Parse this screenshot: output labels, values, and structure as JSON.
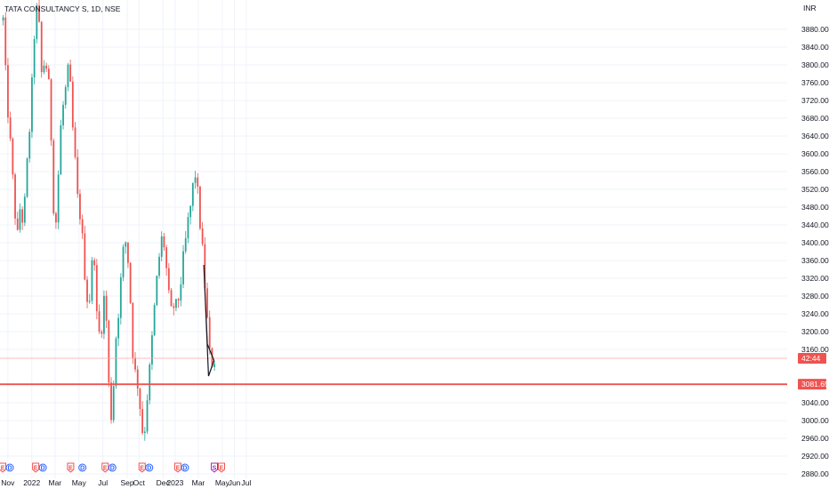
{
  "chart_data": {
    "type": "candlestick",
    "title": "TATA CONSULTANCY S, 1D, NSE",
    "currency": "INR",
    "ylim": [
      2840,
      3920
    ],
    "y_ticks": [
      "3880.00",
      "3840.00",
      "3800.00",
      "3760.00",
      "3720.00",
      "3680.00",
      "3640.00",
      "3600.00",
      "3560.00",
      "3520.00",
      "3480.00",
      "3440.00",
      "3400.00",
      "3360.00",
      "3320.00",
      "3280.00",
      "3240.00",
      "3200.00",
      "3160.00",
      "3040.00",
      "3000.00",
      "2960.00",
      "2920.00",
      "2880.00",
      "2840.00"
    ],
    "x_ticks": [
      "Nov",
      "2022",
      "Mar",
      "May",
      "Jul",
      "Sep",
      "Oct",
      "Dec",
      "2023",
      "Mar",
      "May",
      "Jun",
      "Jul"
    ],
    "current_price": {
      "label": "42:44",
      "value": 3140
    },
    "support_level": {
      "label": "3081.65",
      "value": 3081.65
    },
    "price_path": [
      {
        "date": "2021-10-20",
        "close": 3900
      },
      {
        "date": "2021-10-27",
        "close": 3760
      },
      {
        "date": "2021-11-05",
        "close": 3650
      },
      {
        "date": "2021-11-12",
        "close": 3560
      },
      {
        "date": "2021-11-18",
        "close": 3480
      },
      {
        "date": "2021-11-26",
        "close": 3410
      },
      {
        "date": "2021-12-03",
        "close": 3490
      },
      {
        "date": "2021-12-10",
        "close": 3440
      },
      {
        "date": "2021-12-16",
        "close": 3510
      },
      {
        "date": "2021-12-23",
        "close": 3620
      },
      {
        "date": "2021-12-30",
        "close": 3700
      },
      {
        "date": "2022-01-06",
        "close": 3850
      },
      {
        "date": "2022-01-12",
        "close": 3930
      },
      {
        "date": "2022-01-20",
        "close": 3880
      },
      {
        "date": "2022-01-27",
        "close": 3760
      },
      {
        "date": "2022-02-03",
        "close": 3820
      },
      {
        "date": "2022-02-10",
        "close": 3780
      },
      {
        "date": "2022-02-17",
        "close": 3710
      },
      {
        "date": "2022-02-24",
        "close": 3500
      },
      {
        "date": "2022-03-03",
        "close": 3440
      },
      {
        "date": "2022-03-10",
        "close": 3560
      },
      {
        "date": "2022-03-17",
        "close": 3680
      },
      {
        "date": "2022-03-24",
        "close": 3720
      },
      {
        "date": "2022-03-31",
        "close": 3760
      },
      {
        "date": "2022-04-06",
        "close": 3800
      },
      {
        "date": "2022-04-13",
        "close": 3680
      },
      {
        "date": "2022-04-20",
        "close": 3600
      },
      {
        "date": "2022-04-27",
        "close": 3500
      },
      {
        "date": "2022-05-05",
        "close": 3460
      },
      {
        "date": "2022-05-12",
        "close": 3380
      },
      {
        "date": "2022-05-19",
        "close": 3300
      },
      {
        "date": "2022-05-26",
        "close": 3250
      },
      {
        "date": "2022-06-02",
        "close": 3340
      },
      {
        "date": "2022-06-09",
        "close": 3380
      },
      {
        "date": "2022-06-16",
        "close": 3220
      },
      {
        "date": "2022-06-23",
        "close": 3190
      },
      {
        "date": "2022-06-30",
        "close": 3230
      },
      {
        "date": "2022-07-07",
        "close": 3310
      },
      {
        "date": "2022-07-14",
        "close": 3110
      },
      {
        "date": "2022-07-21",
        "close": 3000
      },
      {
        "date": "2022-07-28",
        "close": 3080
      },
      {
        "date": "2022-08-04",
        "close": 3200
      },
      {
        "date": "2022-08-11",
        "close": 3260
      },
      {
        "date": "2022-08-18",
        "close": 3340
      },
      {
        "date": "2022-08-25",
        "close": 3410
      },
      {
        "date": "2022-09-01",
        "close": 3390
      },
      {
        "date": "2022-09-08",
        "close": 3290
      },
      {
        "date": "2022-09-15",
        "close": 3160
      },
      {
        "date": "2022-09-22",
        "close": 3100
      },
      {
        "date": "2022-09-29",
        "close": 3080
      },
      {
        "date": "2022-10-06",
        "close": 3010
      },
      {
        "date": "2022-10-13",
        "close": 2950
      },
      {
        "date": "2022-10-20",
        "close": 3040
      },
      {
        "date": "2022-10-27",
        "close": 3100
      },
      {
        "date": "2022-11-03",
        "close": 3180
      },
      {
        "date": "2022-11-10",
        "close": 3260
      },
      {
        "date": "2022-11-17",
        "close": 3330
      },
      {
        "date": "2022-11-24",
        "close": 3390
      },
      {
        "date": "2022-12-01",
        "close": 3420
      },
      {
        "date": "2022-12-08",
        "close": 3360
      },
      {
        "date": "2022-12-15",
        "close": 3280
      },
      {
        "date": "2022-12-22",
        "close": 3240
      },
      {
        "date": "2022-12-29",
        "close": 3260
      },
      {
        "date": "2023-01-05",
        "close": 3250
      },
      {
        "date": "2023-01-12",
        "close": 3290
      },
      {
        "date": "2023-01-19",
        "close": 3340
      },
      {
        "date": "2023-01-26",
        "close": 3390
      },
      {
        "date": "2023-02-02",
        "close": 3440
      },
      {
        "date": "2023-02-09",
        "close": 3480
      },
      {
        "date": "2023-02-16",
        "close": 3530
      },
      {
        "date": "2023-02-22",
        "close": 3560
      },
      {
        "date": "2023-03-01",
        "close": 3490
      },
      {
        "date": "2023-03-08",
        "close": 3420
      },
      {
        "date": "2023-03-15",
        "close": 3340
      },
      {
        "date": "2023-03-22",
        "close": 3250
      },
      {
        "date": "2023-03-29",
        "close": 3150
      },
      {
        "date": "2023-04-06",
        "close": 3130
      },
      {
        "date": "2023-04-12",
        "close": 3140
      }
    ],
    "triangle": [
      {
        "date": "2023-03-15",
        "price": 3350
      },
      {
        "date": "2023-03-27",
        "price": 3100
      },
      {
        "date": "2023-04-10",
        "price": 3135
      },
      {
        "date": "2023-03-24",
        "price": 3172
      }
    ],
    "events": [
      {
        "date": "2021-10-20",
        "marks": [
          "E",
          "D"
        ]
      },
      {
        "date": "2022-01-12",
        "marks": [
          "E",
          "D"
        ]
      },
      {
        "date": "2022-04-11",
        "marks": [
          "E"
        ]
      },
      {
        "date": "2022-05-11",
        "marks": [
          "D"
        ]
      },
      {
        "date": "2022-07-08",
        "marks": [
          "E",
          "D"
        ]
      },
      {
        "date": "2022-10-10",
        "marks": [
          "E",
          "D"
        ]
      },
      {
        "date": "2023-01-09",
        "marks": [
          "E",
          "D"
        ]
      },
      {
        "date": "2023-04-12",
        "marks": [
          "S",
          "E"
        ]
      }
    ],
    "colors": {
      "up": "#26a69a",
      "down": "#ef5350",
      "support": "#ef5350",
      "grid": "#f0f3fa"
    }
  }
}
